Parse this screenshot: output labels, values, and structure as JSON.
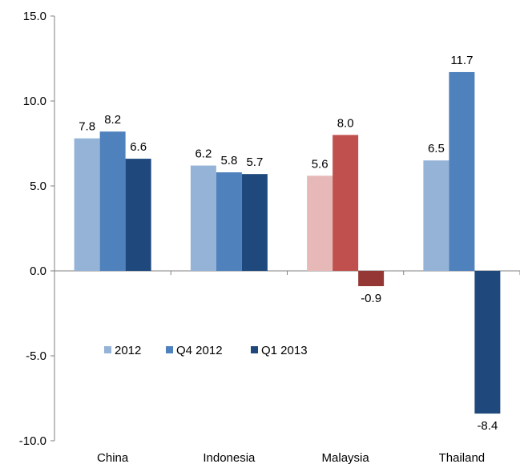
{
  "chart_data": {
    "type": "bar",
    "categories": [
      "China",
      "Indonesia",
      "Malaysia",
      "Thailand"
    ],
    "series": [
      {
        "name": "2012",
        "values": [
          7.8,
          6.2,
          5.6,
          6.5
        ],
        "value_labels": [
          "7.8",
          "6.2",
          "5.6",
          "6.5"
        ],
        "color": "#95b3d7"
      },
      {
        "name": "Q4 2012",
        "values": [
          8.2,
          5.8,
          8.0,
          11.7
        ],
        "value_labels": [
          "8.2",
          "5.8",
          "8.0",
          "11.7"
        ],
        "color": "#4f81bd"
      },
      {
        "name": "Q1 2013",
        "values": [
          6.6,
          5.7,
          -0.9,
          -8.4
        ],
        "value_labels": [
          "6.6",
          "5.7",
          "-0.9",
          "-8.4"
        ],
        "color": "#1f497d"
      }
    ],
    "category_color_overrides": {
      "Malaysia": [
        "#e6b9b8",
        "#c0504d",
        "#953735"
      ]
    },
    "ylim": [
      -10,
      15
    ],
    "yticks": [
      15,
      10,
      5,
      0,
      -5,
      -10
    ],
    "ytick_labels": [
      "15.0",
      "10.0",
      "5.0",
      "0.0",
      "-5.0",
      "-10.0"
    ],
    "grid": false,
    "legend_position": "center-left",
    "title": "",
    "xlabel": "",
    "ylabel": ""
  }
}
